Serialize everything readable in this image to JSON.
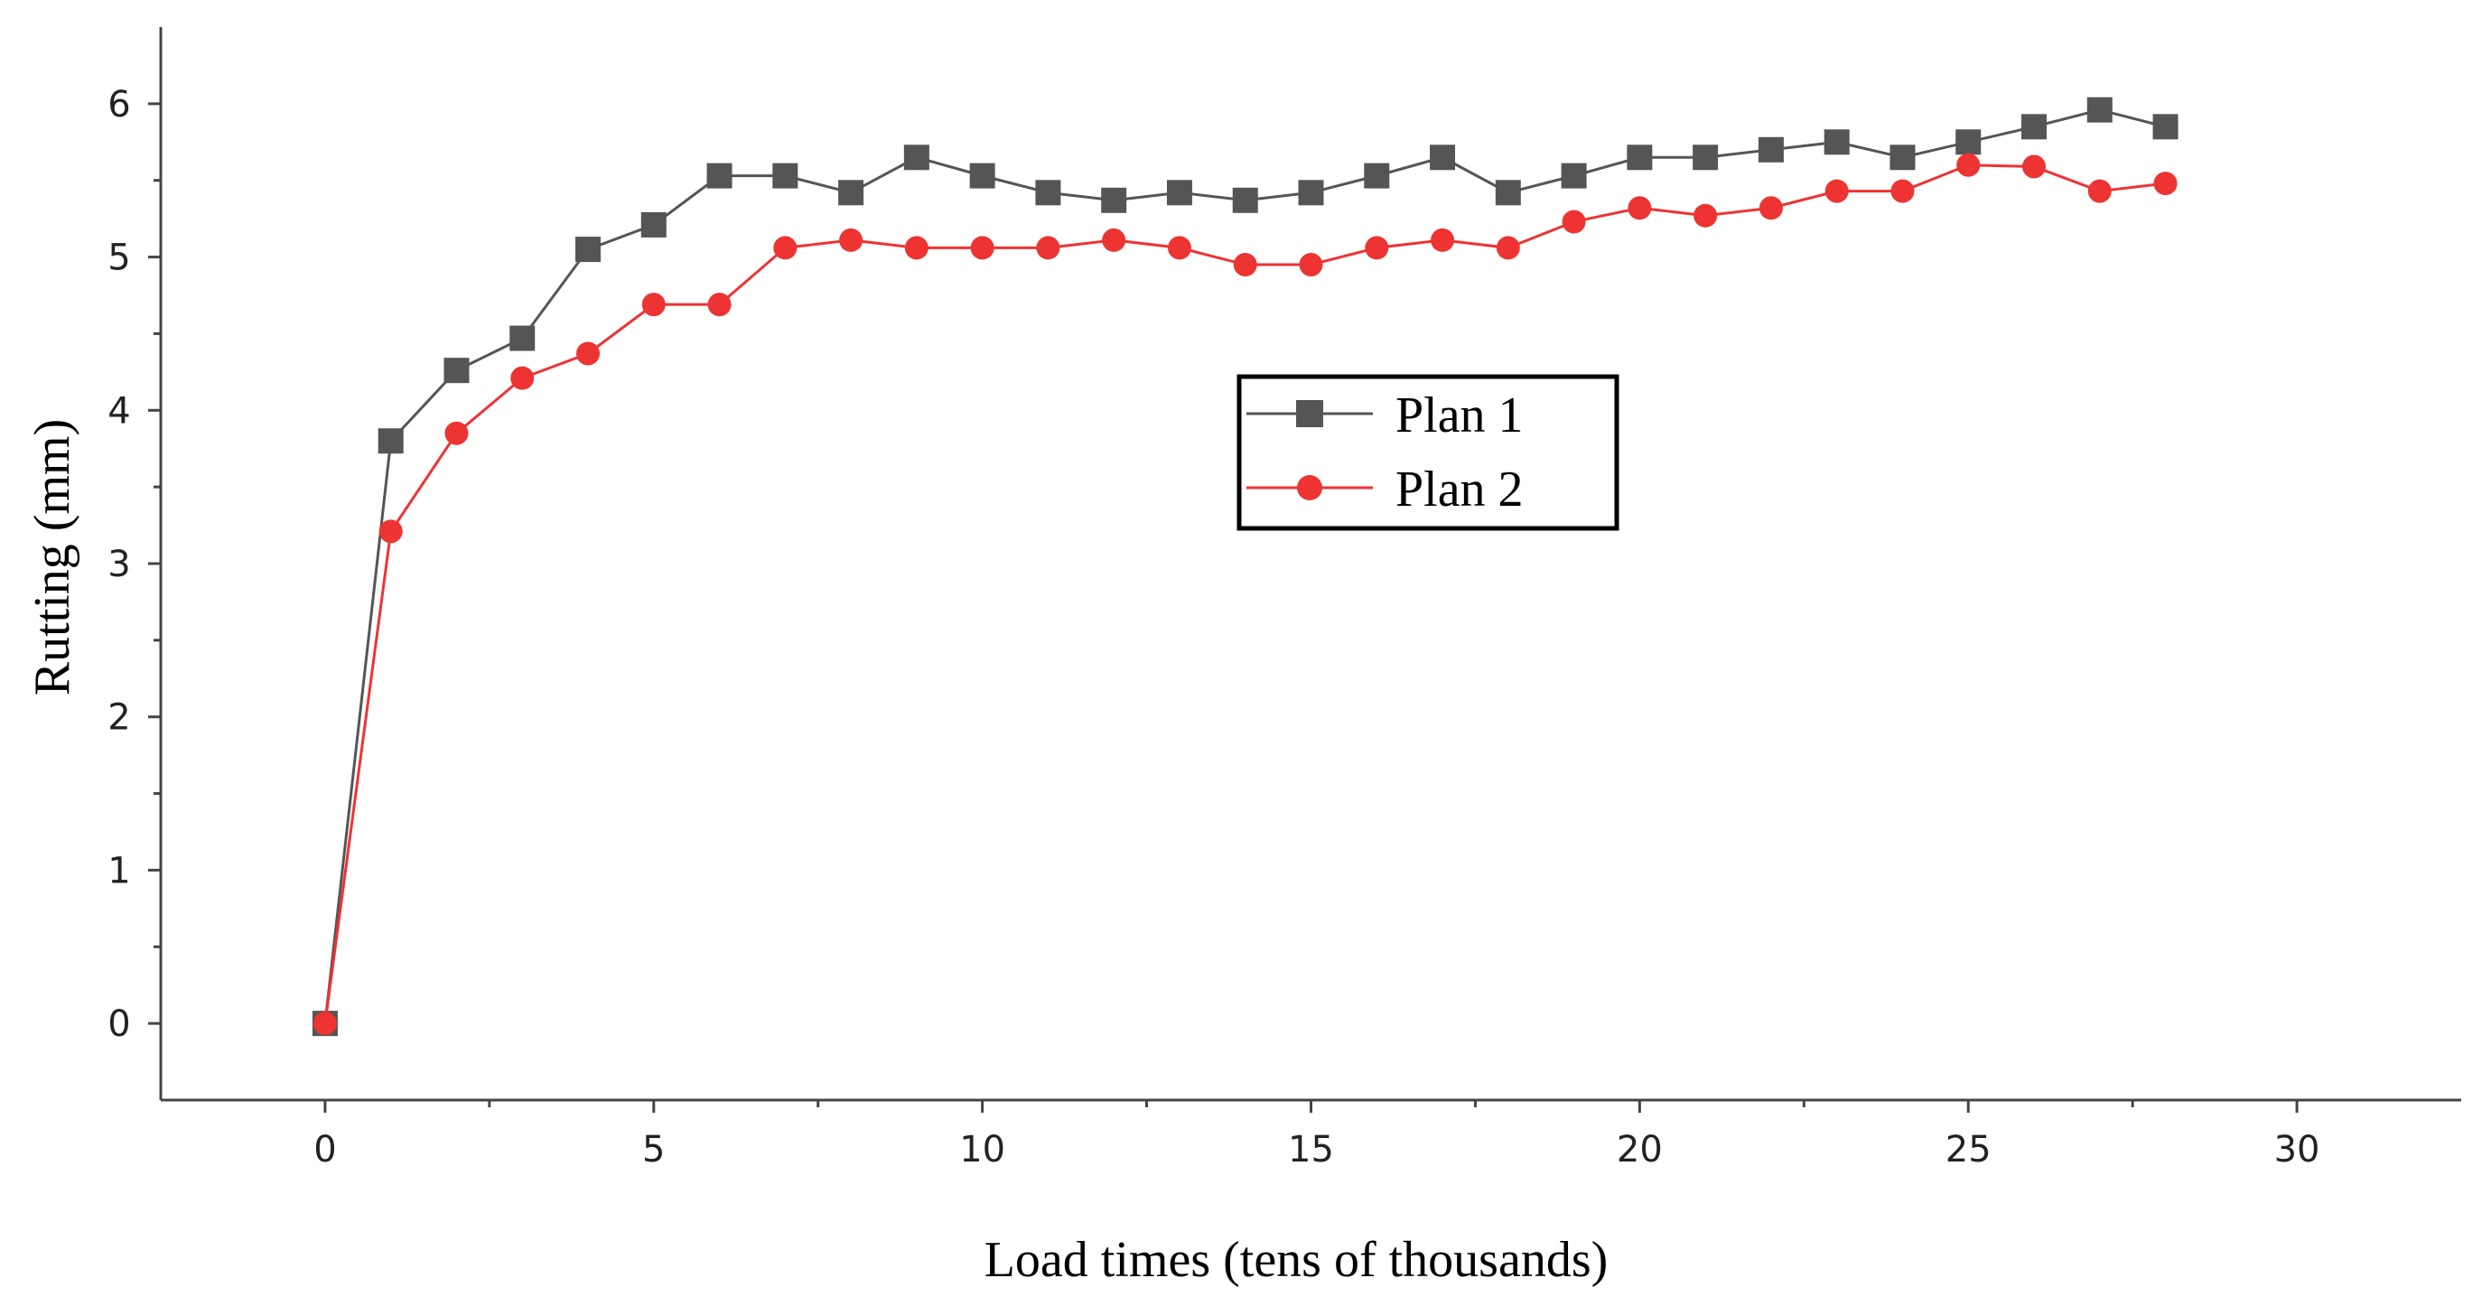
{
  "chart_data": {
    "type": "line",
    "title": "",
    "xlabel": "Load times (tens of thousands)",
    "ylabel": "Rutting (mm)",
    "xlim": [
      -2.5,
      32.5
    ],
    "ylim": [
      -0.5,
      6.5
    ],
    "xticks": [
      0,
      5,
      10,
      15,
      20,
      25,
      30
    ],
    "yticks": [
      0,
      1,
      2,
      3,
      4,
      5,
      6
    ],
    "grid": false,
    "legend_position": "center",
    "x": [
      0,
      1,
      2,
      3,
      4,
      5,
      6,
      7,
      8,
      9,
      10,
      11,
      12,
      13,
      14,
      15,
      16,
      17,
      18,
      19,
      20,
      21,
      22,
      23,
      24,
      25,
      26,
      27,
      28
    ],
    "series": [
      {
        "name": "Plan 1",
        "color": "#555555",
        "marker": "square",
        "values": [
          0,
          3.8,
          4.26,
          4.47,
          5.05,
          5.21,
          5.53,
          5.53,
          5.42,
          5.65,
          5.53,
          5.42,
          5.37,
          5.42,
          5.37,
          5.42,
          5.53,
          5.65,
          5.42,
          5.53,
          5.65,
          5.65,
          5.7,
          5.75,
          5.65,
          5.75,
          5.85,
          5.96,
          5.85
        ]
      },
      {
        "name": "Plan 2",
        "color": "#ee3333",
        "marker": "circle",
        "values": [
          0,
          3.21,
          3.85,
          4.21,
          4.37,
          4.69,
          4.69,
          5.06,
          5.11,
          5.06,
          5.06,
          5.06,
          5.11,
          5.06,
          4.95,
          4.95,
          5.06,
          5.11,
          5.06,
          5.23,
          5.32,
          5.27,
          5.32,
          5.43,
          5.43,
          5.6,
          5.59,
          5.43,
          5.48
        ]
      }
    ]
  }
}
